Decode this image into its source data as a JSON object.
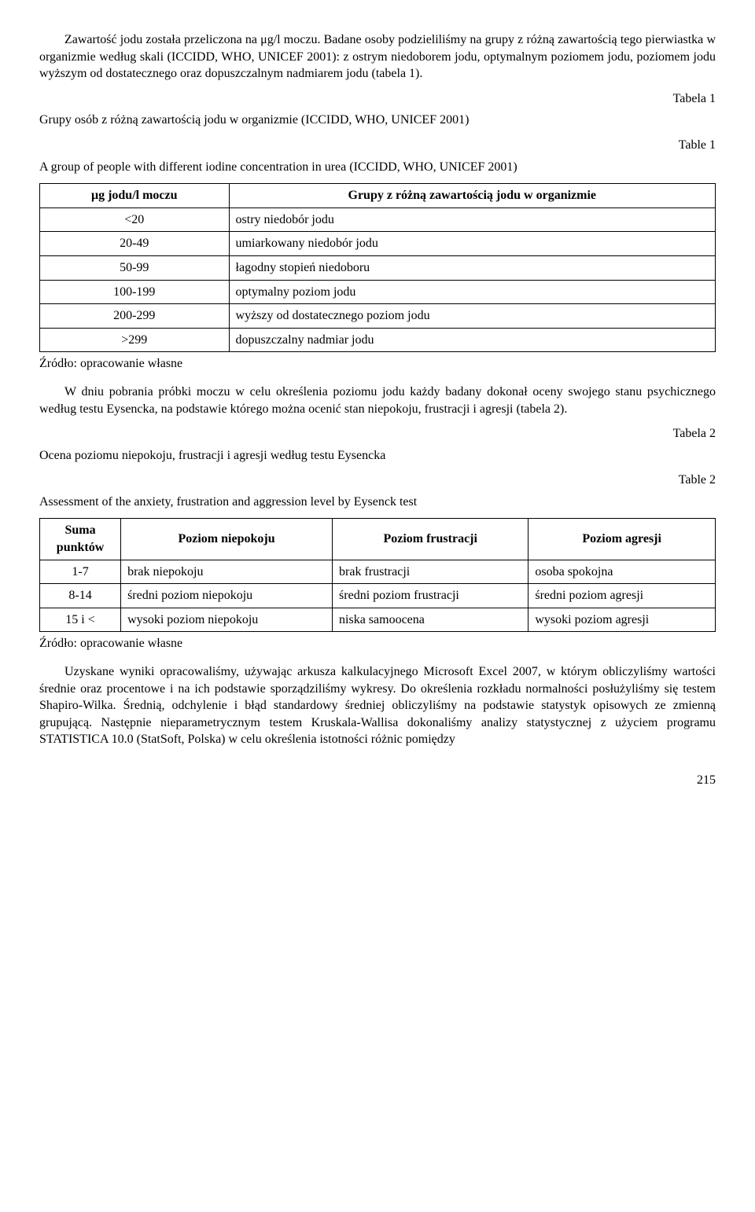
{
  "paragraphs": {
    "p1": "Zawartość jodu została przeliczona na μg/l moczu. Badane osoby podzieliliśmy na grupy z różną zawartością tego pierwiastka w organizmie według skali (ICCIDD, WHO, UNICEF 2001): z ostrym niedoborem jodu, optymalnym poziomem jodu, poziomem jodu wyższym od dostatecznego oraz dopuszczalnym nadmiarem jodu (tabela 1).",
    "p2": "W dniu pobrania próbki moczu w celu określenia poziomu jodu każdy badany dokonał oceny swojego stanu psychicznego według testu Eysencka, na podstawie którego można ocenić stan niepokoju, frustracji i agresji (tabela 2).",
    "p3": "Uzyskane wyniki opracowaliśmy, używając arkusza kalkulacyjnego Microsoft Excel 2007, w którym obliczyliśmy wartości średnie oraz procentowe i na ich podstawie sporządziliśmy wykresy. Do określenia rozkładu normalności posłużyliśmy się testem Shapiro-Wilka. Średnią, odchylenie i błąd standardowy średniej obliczyliśmy na podstawie statystyk opisowych ze zmienną grupującą. Następnie nieparametrycznym testem Kruskala-Wallisa dokonaliśmy analizy statystycznej z użyciem programu STATISTICA 10.0 (StatSoft, Polska) w celu określenia istotności różnic pomiędzy"
  },
  "labels": {
    "tabela1": "Tabela 1",
    "table1": "Table 1",
    "tabela2": "Tabela 2",
    "table2": "Table 2",
    "caption1_pl": "Grupy osób z różną zawartością jodu w organizmie (ICCIDD, WHO, UNICEF 2001)",
    "caption1_en": "A group of people with different iodine concentration in urea (ICCIDD, WHO, UNICEF 2001)",
    "caption2_pl": "Ocena poziomu niepokoju, frustracji i agresji według testu Eysencka",
    "caption2_en": "Assessment of the anxiety, frustration and aggression level by Eysenck test",
    "source": "Źródło: opracowanie własne",
    "pagenum": "215"
  },
  "table1": {
    "header": [
      "μg jodu/l moczu",
      "Grupy z różną zawartością jodu w organizmie"
    ],
    "rows": [
      [
        "<20",
        "ostry niedobór jodu"
      ],
      [
        "20-49",
        "umiarkowany niedobór jodu"
      ],
      [
        "50-99",
        "łagodny stopień niedoboru"
      ],
      [
        "100-199",
        "optymalny poziom jodu"
      ],
      [
        "200-299",
        "wyższy od dostatecznego poziom jodu"
      ],
      [
        ">299",
        "dopuszczalny nadmiar jodu"
      ]
    ]
  },
  "table2": {
    "header": [
      "Suma punktów",
      "Poziom niepokoju",
      "Poziom frustracji",
      "Poziom agresji"
    ],
    "rows": [
      [
        "1-7",
        "brak niepokoju",
        "brak frustracji",
        "osoba spokojna"
      ],
      [
        "8-14",
        "średni poziom niepokoju",
        "średni poziom frustracji",
        "średni poziom agresji"
      ],
      [
        "15 i <",
        "wysoki poziom niepokoju",
        "niska samoocena",
        "wysoki poziom agresji"
      ]
    ]
  }
}
